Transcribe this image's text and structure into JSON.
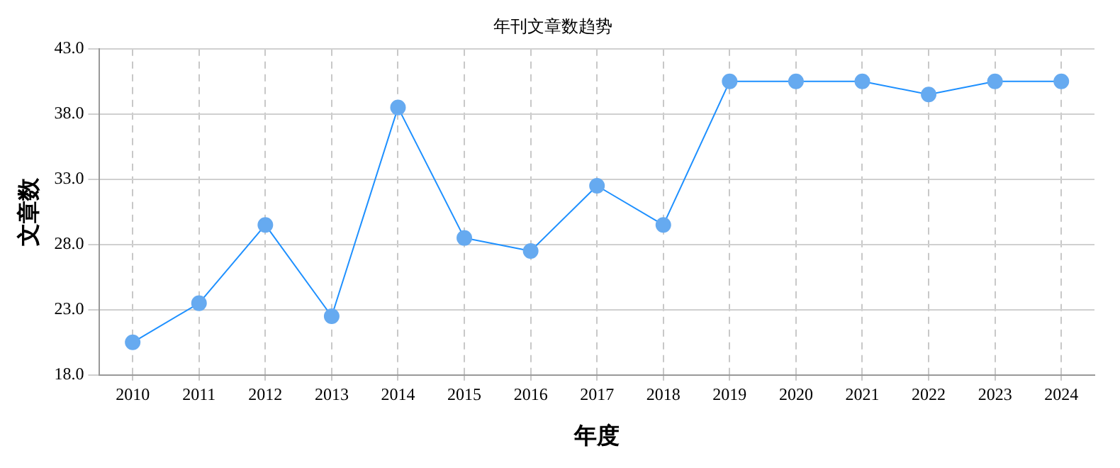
{
  "chart_data": {
    "type": "line",
    "title": "年刊文章数趋势",
    "xlabel": "年度",
    "ylabel": "文章数",
    "categories": [
      "2010",
      "2011",
      "2012",
      "2013",
      "2014",
      "2015",
      "2016",
      "2017",
      "2018",
      "2019",
      "2020",
      "2021",
      "2022",
      "2023",
      "2024"
    ],
    "series": [
      {
        "color": "#1e90ff",
        "values": [
          20.5,
          23.5,
          29.5,
          22.5,
          38.5,
          28.5,
          27.5,
          32.5,
          29.5,
          40.5,
          40.5,
          40.5,
          39.5,
          40.5,
          40.5
        ]
      }
    ],
    "ylim": [
      18,
      43
    ],
    "yticks": [
      {
        "value": 18,
        "label": "18.0"
      },
      {
        "value": 23,
        "label": "23.0"
      },
      {
        "value": 28,
        "label": "28.0"
      },
      {
        "value": 33,
        "label": "33.0"
      },
      {
        "value": 38,
        "label": "38.0"
      },
      {
        "value": 43,
        "label": "43.0"
      }
    ],
    "grid": true,
    "marker": "circle",
    "line_style": "solid"
  }
}
